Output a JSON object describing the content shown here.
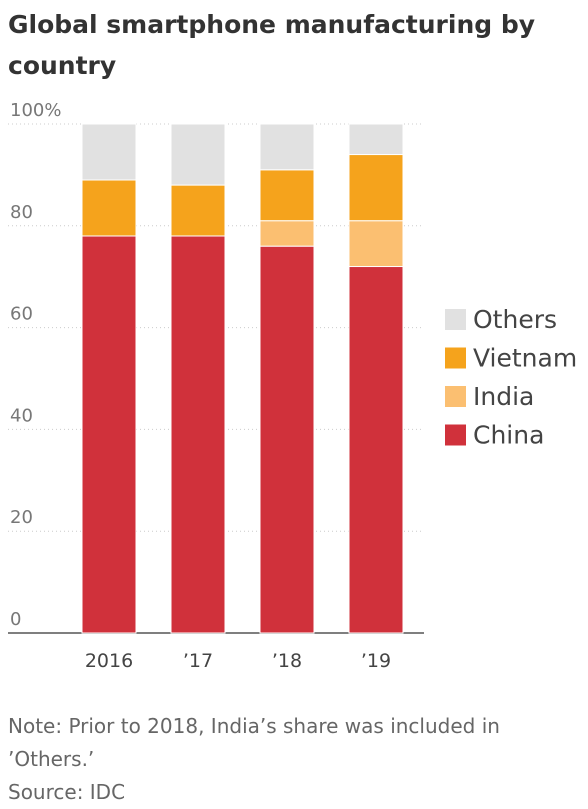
{
  "chart_data": {
    "type": "bar",
    "stacked": true,
    "title": "Global smartphone manufacturing by country",
    "categories": [
      "2016",
      "’17",
      "’18",
      "’19"
    ],
    "series": [
      {
        "name": "China",
        "values": [
          78,
          78,
          76,
          72
        ],
        "color": "#d0313b"
      },
      {
        "name": "India",
        "values": [
          0,
          0,
          5,
          9
        ],
        "color": "#fbbf71"
      },
      {
        "name": "Vietnam",
        "values": [
          11,
          10,
          10,
          13
        ],
        "color": "#f5a31c"
      },
      {
        "name": "Others",
        "values": [
          11,
          12,
          9,
          6
        ],
        "color": "#e1e1e1"
      }
    ],
    "legend_order": [
      "Others",
      "Vietnam",
      "India",
      "China"
    ],
    "legend_position": "right",
    "ylim": [
      0,
      100
    ],
    "yticks": [
      0,
      20,
      40,
      60,
      80,
      100
    ],
    "ytick_labels": [
      "0",
      "20",
      "40",
      "60",
      "80",
      "100%"
    ],
    "grid": true,
    "xlabel": "",
    "ylabel": ""
  },
  "notes": {
    "note": "Note: Prior to 2018, India’s share was included in ’Others.’",
    "source": "Source: IDC"
  }
}
